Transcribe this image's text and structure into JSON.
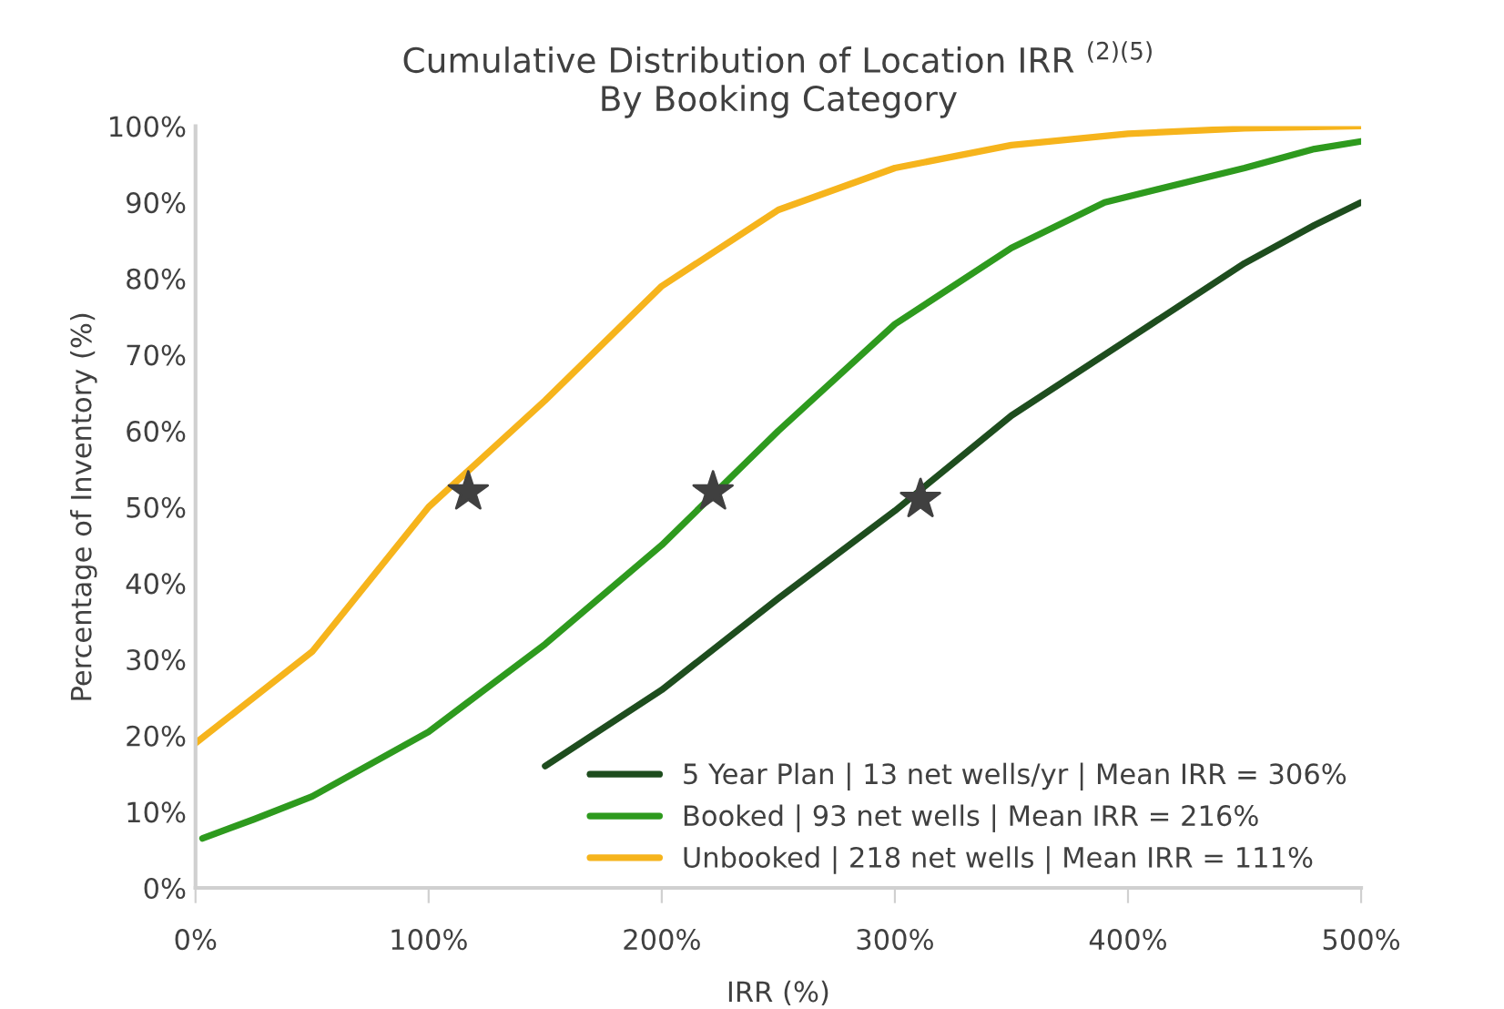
{
  "chart_data": {
    "type": "line",
    "title": "Cumulative Distribution of Location IRR $^{(2)(5)}$\nBy Booking Category",
    "xlabel": "IRR (%)",
    "ylabel": "Percentage of Inventory (%)",
    "xlim": [
      0,
      500
    ],
    "xticks": [
      {
        "value": 0,
        "label": "0%"
      },
      {
        "value": 100,
        "label": "100%"
      },
      {
        "value": 200,
        "label": "200%"
      },
      {
        "value": 300,
        "label": "300%"
      },
      {
        "value": 400,
        "label": "400%"
      },
      {
        "value": 500,
        "label": "500%"
      }
    ],
    "ylim": [
      0,
      100
    ],
    "yticks": [
      {
        "value": 0,
        "label": "0%"
      },
      {
        "value": 10,
        "label": "10%"
      },
      {
        "value": 20,
        "label": "20%"
      },
      {
        "value": 30,
        "label": "30%"
      },
      {
        "value": 40,
        "label": "40%"
      },
      {
        "value": 50,
        "label": "50%"
      },
      {
        "value": 60,
        "label": "60%"
      },
      {
        "value": 70,
        "label": "70%"
      },
      {
        "value": 80,
        "label": "80%"
      },
      {
        "value": 90,
        "label": "90%"
      },
      {
        "value": 100,
        "label": "100%"
      }
    ],
    "grid": false,
    "legend": "bottom right",
    "marker": "none",
    "line_style": "solid",
    "series": [
      {
        "name": "5 Year Plan | 13 net wells/yr | Mean IRR = 306%",
        "color": "#1e4d1e",
        "x": [
          150,
          200,
          250,
          300,
          350,
          400,
          450,
          480,
          500
        ],
        "values": [
          16,
          26,
          38,
          49.5,
          62,
          72,
          82,
          87,
          90
        ]
      },
      {
        "name": "Booked | 93 net wells | Mean IRR = 216%",
        "color": "#2e9a1e",
        "x": [
          3,
          25,
          50,
          100,
          150,
          200,
          250,
          300,
          350,
          390,
          450,
          480,
          500
        ],
        "values": [
          6.5,
          9,
          12,
          20.5,
          32,
          45,
          60,
          74,
          84,
          90,
          94.5,
          97,
          98
        ]
      },
      {
        "name": "Unbooked | 218 net wells | Mean IRR = 111%",
        "color": "#f6b41c",
        "x": [
          0,
          50,
          100,
          150,
          200,
          250,
          300,
          350,
          400,
          450,
          500
        ],
        "values": [
          19,
          31,
          50,
          64,
          79,
          89,
          94.5,
          97.5,
          99,
          99.7,
          100
        ]
      },
      {
        "type": "scatter",
        "marker": "star",
        "color": "#404040",
        "x": [
          117,
          222,
          311
        ],
        "values": [
          52,
          52,
          51
        ]
      }
    ]
  }
}
